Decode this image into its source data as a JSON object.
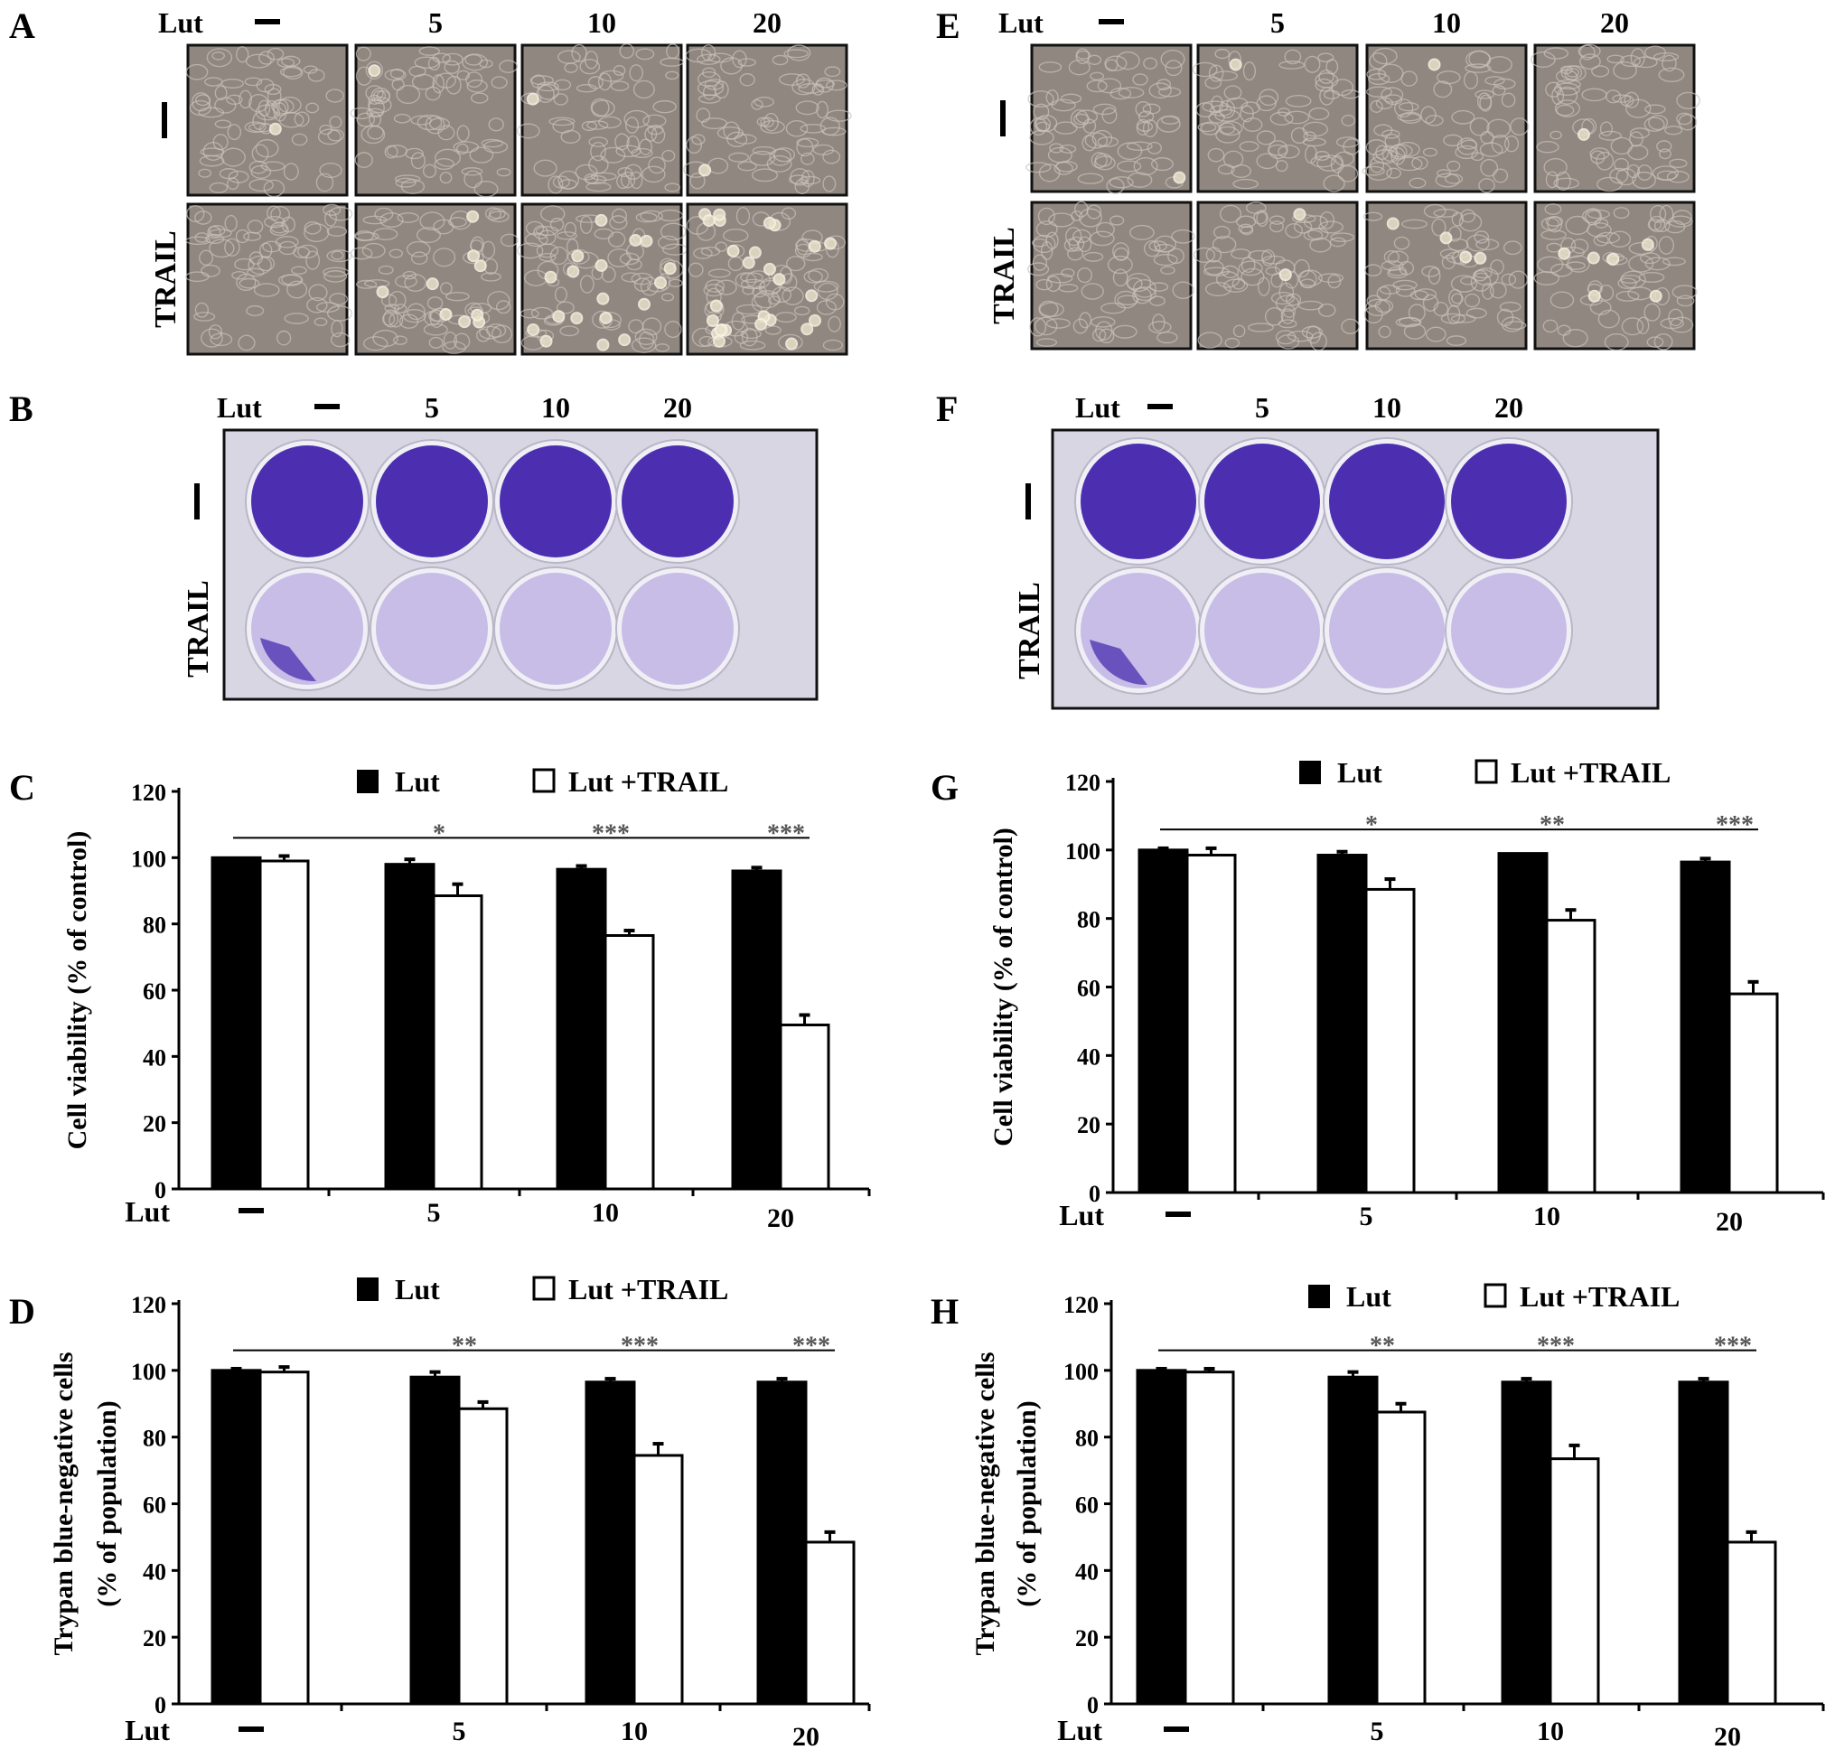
{
  "panels": {
    "A": {
      "letter": "A",
      "lut_label": "Lut",
      "cols": [
        "—",
        "5",
        "10",
        "20"
      ],
      "rows": [
        "—",
        "TRAIL"
      ]
    },
    "E": {
      "letter": "E",
      "lut_label": "Lut",
      "cols": [
        "—",
        "5",
        "10",
        "20"
      ],
      "rows": [
        "—",
        "TRAIL"
      ]
    },
    "B": {
      "letter": "B",
      "lut_label": "Lut",
      "cols": [
        "—",
        "5",
        "10",
        "20"
      ],
      "rows": [
        "—",
        "TRAIL"
      ]
    },
    "F": {
      "letter": "F",
      "lut_label": "Lut",
      "cols": [
        "—",
        "5",
        "10",
        "20"
      ],
      "rows": [
        "—",
        "TRAIL"
      ]
    }
  },
  "colors": {
    "micro_bg": "#8f8780",
    "micro_cell": "#c9c2b8",
    "well_dark": "#4b2fb0",
    "well_light": "#c7bde6",
    "plate": "#d9d6e3"
  },
  "chart_data": [
    {
      "panel": "C",
      "type": "bar",
      "ylabel": "Cell viability (% of control)",
      "xlabel": "Lut",
      "categories": [
        "—",
        "5",
        "10",
        "20"
      ],
      "ylim": [
        0,
        120
      ],
      "yticks": [
        "0",
        "20",
        "40",
        "60",
        "80",
        "100",
        "120"
      ],
      "legend": [
        "Lut",
        "Lut +TRAIL"
      ],
      "series": [
        {
          "name": "Lut",
          "values": [
            100,
            98,
            96.5,
            96
          ],
          "errors": [
            0,
            1.5,
            1,
            1
          ],
          "color": "#000000"
        },
        {
          "name": "Lut +TRAIL",
          "values": [
            99,
            88.5,
            76.5,
            49.5
          ],
          "errors": [
            1.5,
            3.5,
            1.5,
            3
          ],
          "color": "#ffffff"
        }
      ],
      "significance": [
        "*",
        "***",
        "***"
      ]
    },
    {
      "panel": "G",
      "type": "bar",
      "ylabel": "Cell viability (% of control)",
      "xlabel": "Lut",
      "categories": [
        "—",
        "5",
        "10",
        "20"
      ],
      "ylim": [
        0,
        120
      ],
      "yticks": [
        "0",
        "20",
        "40",
        "60",
        "80",
        "100",
        "120"
      ],
      "legend": [
        "Lut",
        "Lut +TRAIL"
      ],
      "series": [
        {
          "name": "Lut",
          "values": [
            100,
            98.5,
            99,
            96.5
          ],
          "errors": [
            0.5,
            1,
            0,
            1
          ],
          "color": "#000000"
        },
        {
          "name": "Lut +TRAIL",
          "values": [
            98.5,
            88.5,
            79.5,
            58
          ],
          "errors": [
            2,
            3,
            3,
            3.5
          ],
          "color": "#ffffff"
        }
      ],
      "significance": [
        "*",
        "**",
        "***"
      ]
    },
    {
      "panel": "D",
      "type": "bar",
      "ylabel": "Trypan blue-negative cells",
      "ylabel2": "(% of population)",
      "xlabel": "Lut",
      "categories": [
        "—",
        "5",
        "10",
        "20"
      ],
      "ylim": [
        0,
        120
      ],
      "yticks": [
        "0",
        "20",
        "40",
        "60",
        "80",
        "100",
        "120"
      ],
      "legend": [
        "Lut",
        "Lut +TRAIL"
      ],
      "series": [
        {
          "name": "Lut",
          "values": [
            100,
            98,
            96.5,
            96.5
          ],
          "errors": [
            0.5,
            1.5,
            1,
            1
          ],
          "color": "#000000"
        },
        {
          "name": "Lut +TRAIL",
          "values": [
            99.5,
            88.5,
            74.5,
            48.5
          ],
          "errors": [
            1.5,
            2,
            3.5,
            3
          ],
          "color": "#ffffff"
        }
      ],
      "significance": [
        "**",
        "***",
        "***"
      ]
    },
    {
      "panel": "H",
      "type": "bar",
      "ylabel": "Trypan blue-negative cells",
      "ylabel2": "(% of population)",
      "xlabel": "Lut",
      "categories": [
        "—",
        "5",
        "10",
        "20"
      ],
      "ylim": [
        0,
        120
      ],
      "yticks": [
        "0",
        "20",
        "40",
        "60",
        "80",
        "100",
        "120"
      ],
      "legend": [
        "Lut",
        "Lut +TRAIL"
      ],
      "series": [
        {
          "name": "Lut",
          "values": [
            100,
            98,
            96.5,
            96.5
          ],
          "errors": [
            0.5,
            1.5,
            1,
            1
          ],
          "color": "#000000"
        },
        {
          "name": "Lut +TRAIL",
          "values": [
            99.5,
            87.5,
            73.5,
            48.5
          ],
          "errors": [
            1,
            2.5,
            4,
            3
          ],
          "color": "#ffffff"
        }
      ],
      "significance": [
        "**",
        "***",
        "***"
      ]
    }
  ]
}
